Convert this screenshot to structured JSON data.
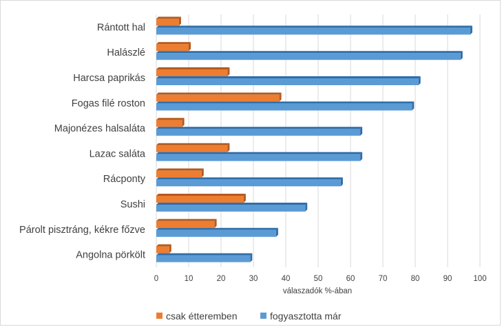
{
  "chart_data": {
    "type": "bar",
    "orientation": "horizontal",
    "categories": [
      "Rántott hal",
      "Halászlé",
      "Harcsa paprikás",
      "Fogas filé roston",
      "Majonézes halsaláta",
      "Lazac saláta",
      "Rácponty",
      "Sushi",
      "Párolt pisztráng, kékre főzve",
      "Angolna pörkölt"
    ],
    "series": [
      {
        "name": "csak étteremben",
        "color": "#ed7d31",
        "values": [
          7,
          10,
          22,
          38,
          8,
          22,
          14,
          27,
          18,
          4
        ]
      },
      {
        "name": "fogyasztotta már",
        "color": "#5b9bd5",
        "values": [
          97,
          94,
          81,
          79,
          63,
          63,
          57,
          46,
          37,
          29
        ]
      }
    ],
    "xlabel": "válaszadók  %-ában",
    "xlim": [
      0,
      100
    ],
    "xticks": [
      "0",
      "10",
      "20",
      "30",
      "40",
      "50",
      "60",
      "70",
      "80",
      "90",
      "100"
    ],
    "grid": true,
    "legend_position": "bottom"
  }
}
